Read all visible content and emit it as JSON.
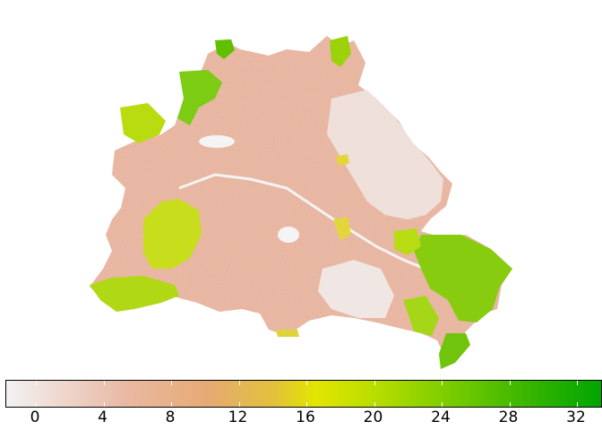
{
  "legend": {
    "ticks": [
      "0",
      "4",
      "8",
      "12",
      "16",
      "20",
      "24",
      "28",
      "32"
    ],
    "colors": {
      "low": "#f2f2f2",
      "mid": "#e6aa73",
      "yellow": "#e3e600",
      "high": "#00a600"
    }
  }
}
